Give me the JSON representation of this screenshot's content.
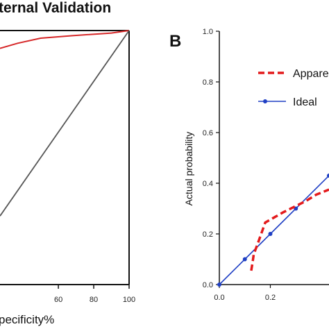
{
  "chart_data": [
    {
      "type": "line",
      "title": "ternal Validation",
      "xlabel": "pecificity%",
      "ylabel": "",
      "xlim": [
        27,
        100
      ],
      "ylim": [
        0,
        100
      ],
      "x_ticks": [
        60,
        80,
        100
      ],
      "x_tick_labels": [
        "60",
        "80",
        "100"
      ],
      "series": [
        {
          "color": "#d62728",
          "x": [
            27,
            37,
            50,
            68,
            90,
            100
          ],
          "y": [
            93,
            95,
            97,
            98,
            99,
            100
          ]
        },
        {
          "color": "#555555",
          "x": [
            27,
            50,
            75,
            100
          ],
          "y": [
            27,
            50,
            75,
            100
          ]
        }
      ]
    },
    {
      "type": "line",
      "panel_label": "B",
      "xlabel": "",
      "ylabel": "Actual probability",
      "xlim": [
        0,
        0.43
      ],
      "ylim": [
        0,
        1.0
      ],
      "x_ticks": [
        0.0,
        0.2
      ],
      "x_tick_labels": [
        "0.0",
        "0.2"
      ],
      "y_ticks": [
        0.0,
        0.2,
        0.4,
        0.6,
        0.8,
        1.0
      ],
      "y_tick_labels": [
        "0.0",
        "0.2",
        "0.4",
        "0.6",
        "0.8",
        "1.0"
      ],
      "legend": {
        "placement": "top-right"
      },
      "series": [
        {
          "name": "Appare",
          "color": "#e31a1c",
          "style": "dashed",
          "x": [
            0.125,
            0.13,
            0.135,
            0.15,
            0.18,
            0.25,
            0.3,
            0.34,
            0.38,
            0.43
          ],
          "y": [
            0.055,
            0.085,
            0.12,
            0.16,
            0.245,
            0.285,
            0.31,
            0.33,
            0.355,
            0.375
          ]
        },
        {
          "name": "Ideal",
          "color": "#1f3fc4",
          "style": "solid",
          "x": [
            0.0,
            0.1,
            0.2,
            0.3,
            0.43
          ],
          "y": [
            0.0,
            0.1,
            0.2,
            0.3,
            0.43
          ]
        }
      ]
    }
  ]
}
